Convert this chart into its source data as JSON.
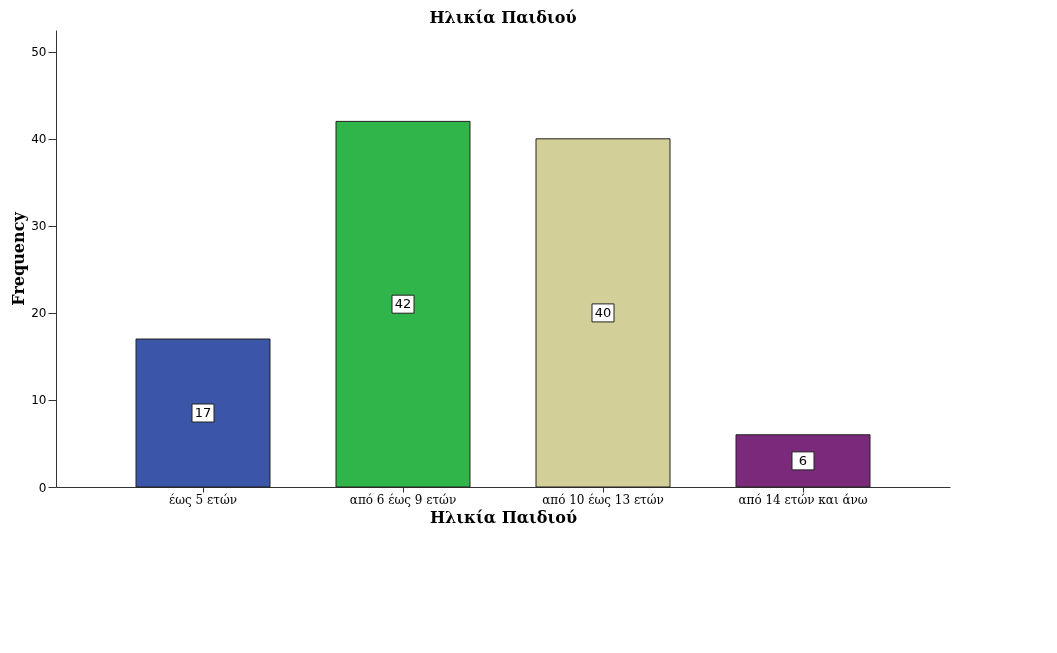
{
  "chart_data": {
    "type": "bar",
    "title": "Ηλικία Παιδιού",
    "xlabel": "Ηλικία Παιδιού",
    "ylabel": "Frequency",
    "categories": [
      "έως 5 ετών",
      "από 6 έως 9 ετών",
      "από 10 έως 13 ετών",
      "από 14 ετών και άνω"
    ],
    "values": [
      17,
      42,
      40,
      6
    ],
    "colors": [
      "#3b56a8",
      "#2fb54a",
      "#d3cf98",
      "#7b2a7b"
    ],
    "ylim": [
      0,
      52.5
    ],
    "yticks": [
      0,
      10,
      20,
      30,
      40,
      50
    ],
    "grid": false,
    "data_labels": true
  }
}
